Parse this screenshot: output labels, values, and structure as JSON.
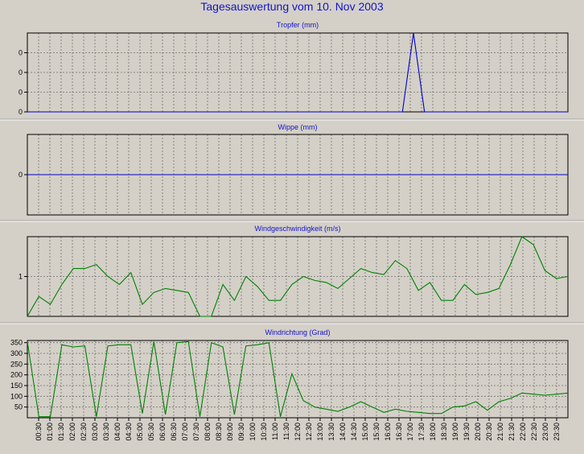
{
  "title": "Tagesauswertung vom 10. Nov 2003",
  "chart_data": [
    {
      "type": "line",
      "title": "Tropfer (mm)",
      "ylim": [
        0,
        0.04
      ],
      "yticks": [
        0,
        0.01,
        0.02,
        0.03
      ],
      "ytick_labels": [
        "0",
        "0",
        "0",
        "0"
      ],
      "series": [
        {
          "values": [
            0,
            0,
            0,
            0,
            0,
            0,
            0,
            0,
            0,
            0,
            0,
            0,
            0,
            0,
            0,
            0,
            0,
            0,
            0,
            0,
            0,
            0,
            0,
            0,
            0,
            0,
            0,
            0,
            0,
            0,
            0,
            0,
            0,
            0,
            0,
            0.04,
            0,
            0,
            0,
            0,
            0,
            0,
            0,
            0,
            0,
            0,
            0,
            0,
            0,
            0
          ],
          "color": "#0000c8"
        }
      ],
      "grid": true
    },
    {
      "type": "line",
      "title": "Wippe (mm)",
      "ylim": [
        -1,
        1
      ],
      "yticks": [
        0
      ],
      "ytick_labels": [
        "0"
      ],
      "series": [
        {
          "values": [
            0,
            0,
            0,
            0,
            0,
            0,
            0,
            0,
            0,
            0,
            0,
            0,
            0,
            0,
            0,
            0,
            0,
            0,
            0,
            0,
            0,
            0,
            0,
            0,
            0,
            0,
            0,
            0,
            0,
            0,
            0,
            0,
            0,
            0,
            0,
            0,
            0,
            0,
            0,
            0,
            0,
            0,
            0,
            0,
            0,
            0,
            0,
            0,
            0,
            0
          ],
          "color": "#0000c8"
        }
      ],
      "grid": true
    },
    {
      "type": "line",
      "title": "Windgeschwindigkeit (m/s)",
      "ylim": [
        0,
        2
      ],
      "yticks": [
        1
      ],
      "ytick_labels": [
        "1"
      ],
      "series": [
        {
          "values": [
            0,
            0.5,
            0.3,
            0.8,
            1.2,
            1.2,
            1.3,
            1.0,
            0.8,
            1.1,
            0.3,
            0.6,
            0.7,
            0.65,
            0.6,
            0,
            0,
            0.8,
            0.4,
            1.0,
            0.75,
            0.4,
            0.4,
            0.8,
            1.0,
            0.9,
            0.85,
            0.7,
            0.95,
            1.2,
            1.1,
            1.05,
            1.4,
            1.2,
            0.65,
            0.85,
            0.4,
            0.4,
            0.8,
            0.55,
            0.6,
            0.7,
            1.3,
            2.0,
            1.8,
            1.15,
            0.95,
            1.0
          ],
          "color": "#008000"
        }
      ],
      "grid": true
    },
    {
      "type": "line",
      "title": "Windrichtung (Grad)",
      "ylim": [
        0,
        360
      ],
      "yticks": [
        50,
        100,
        150,
        200,
        250,
        300,
        350
      ],
      "ytick_labels": [
        "50",
        "100",
        "150",
        "200",
        "250",
        "300",
        "350"
      ],
      "series": [
        {
          "values": [
            355,
            5,
            5,
            340,
            330,
            335,
            5,
            335,
            340,
            340,
            20,
            355,
            15,
            350,
            355,
            5,
            350,
            330,
            15,
            335,
            340,
            350,
            5,
            205,
            80,
            50,
            40,
            30,
            50,
            75,
            50,
            25,
            40,
            30,
            25,
            20,
            20,
            50,
            55,
            75,
            35,
            75,
            90,
            115,
            110,
            105,
            110,
            115
          ],
          "color": "#008000"
        }
      ],
      "grid": true,
      "x_tick_labels": [
        "00:30",
        "01:00",
        "01:30",
        "02:00",
        "02:30",
        "03:00",
        "03:30",
        "04:00",
        "04:30",
        "05:00",
        "05:30",
        "06:00",
        "06:30",
        "07:00",
        "07:30",
        "08:00",
        "08:30",
        "09:00",
        "09:30",
        "10:00",
        "10:30",
        "11:00",
        "11:30",
        "12:00",
        "12:30",
        "13:00",
        "13:30",
        "14:00",
        "14:30",
        "15:00",
        "15:30",
        "16:00",
        "16:30",
        "17:00",
        "17:30",
        "18:00",
        "18:30",
        "19:00",
        "19:30",
        "20:00",
        "20:30",
        "21:00",
        "21:30",
        "22:00",
        "22:30",
        "23:00",
        "23:30"
      ]
    }
  ]
}
